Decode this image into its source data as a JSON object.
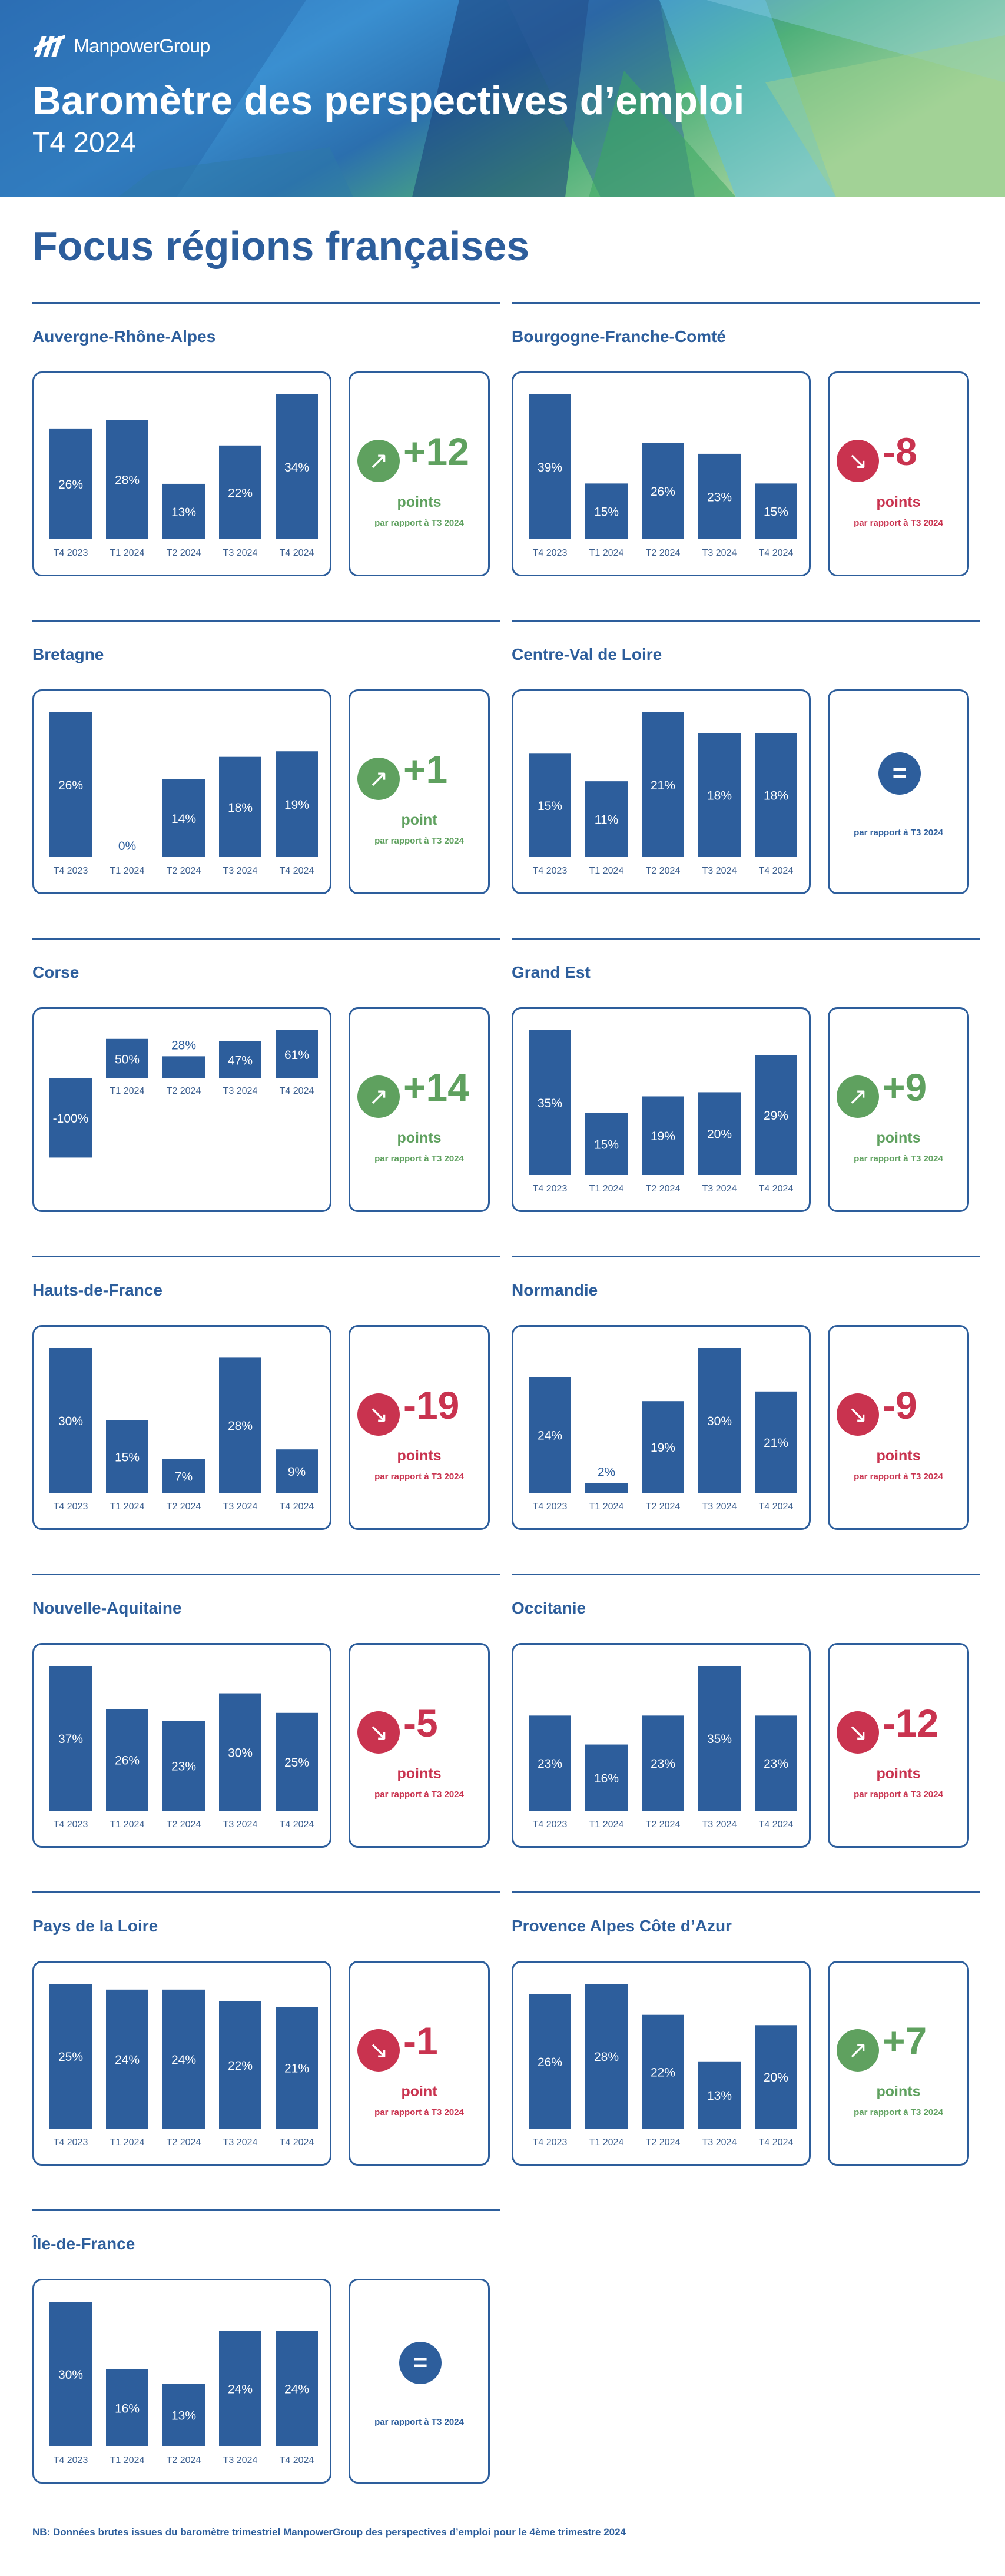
{
  "header": {
    "logo_text": "ManpowerGroup",
    "title": "Baromètre des perspectives d’emploi",
    "subtitle": "T4 2024"
  },
  "page_title": "Focus régions françaises",
  "colors": {
    "bar": "#2d5e9c",
    "up": "#5fa15f",
    "down": "#c9334f",
    "neutral": "#2d5e9c"
  },
  "chart_data": [
    {
      "type": "bar",
      "title": "Auvergne-Rhône-Alpes",
      "categories": [
        "T4 2023",
        "T1 2024",
        "T2 2024",
        "T3 2024",
        "T4 2024"
      ],
      "values": [
        26,
        28,
        13,
        22,
        34
      ],
      "labels": [
        "26%",
        "28%",
        "13%",
        "22%",
        "34%"
      ],
      "delta": {
        "value": "+12",
        "unit": "points",
        "ref": "par rapport à T3 2024",
        "trend": "up"
      }
    },
    {
      "type": "bar",
      "title": "Bourgogne-Franche-Comté",
      "categories": [
        "T4 2023",
        "T1 2024",
        "T2 2024",
        "T3 2024",
        "T4 2024"
      ],
      "values": [
        39,
        15,
        26,
        23,
        15
      ],
      "labels": [
        "39%",
        "15%",
        "26%",
        "23%",
        "15%"
      ],
      "delta": {
        "value": "-8",
        "unit": "points",
        "ref": "par rapport à T3 2024",
        "trend": "down"
      }
    },
    {
      "type": "bar",
      "title": "Bretagne",
      "categories": [
        "T4 2023",
        "T1 2024",
        "T2 2024",
        "T3 2024",
        "T4 2024"
      ],
      "values": [
        26,
        0,
        14,
        18,
        19
      ],
      "labels": [
        "26%",
        "0%",
        "14%",
        "18%",
        "19%"
      ],
      "delta": {
        "value": "+1",
        "unit": "point",
        "ref": "par rapport à T3 2024",
        "trend": "up"
      }
    },
    {
      "type": "bar",
      "title": "Centre-Val de Loire",
      "categories": [
        "T4 2023",
        "T1 2024",
        "T2 2024",
        "T3 2024",
        "T4 2024"
      ],
      "values": [
        15,
        11,
        21,
        18,
        18
      ],
      "labels": [
        "15%",
        "11%",
        "21%",
        "18%",
        "18%"
      ],
      "delta": {
        "value": "=",
        "unit": "",
        "ref": "par rapport à T3 2024",
        "trend": "equal"
      }
    },
    {
      "type": "bar",
      "title": "Corse",
      "categories": [
        "T4 2023",
        "T1 2024",
        "T2 2024",
        "T3 2024",
        "T4 2024"
      ],
      "values": [
        -100,
        50,
        28,
        47,
        61
      ],
      "labels": [
        "-100%",
        "50%",
        "28%",
        "47%",
        "61%"
      ],
      "delta": {
        "value": "+14",
        "unit": "points",
        "ref": "par rapport à T3 2024",
        "trend": "up"
      }
    },
    {
      "type": "bar",
      "title": "Grand Est",
      "categories": [
        "T4 2023",
        "T1 2024",
        "T2 2024",
        "T3 2024",
        "T4 2024"
      ],
      "values": [
        35,
        15,
        19,
        20,
        29
      ],
      "labels": [
        "35%",
        "15%",
        "19%",
        "20%",
        "29%"
      ],
      "delta": {
        "value": "+9",
        "unit": "points",
        "ref": "par rapport à T3 2024",
        "trend": "up"
      }
    },
    {
      "type": "bar",
      "title": "Hauts-de-France",
      "categories": [
        "T4 2023",
        "T1 2024",
        "T2 2024",
        "T3 2024",
        "T4 2024"
      ],
      "values": [
        30,
        15,
        7,
        28,
        9
      ],
      "labels": [
        "30%",
        "15%",
        "7%",
        "28%",
        "9%"
      ],
      "delta": {
        "value": "-19",
        "unit": "points",
        "ref": "par rapport à T3 2024",
        "trend": "down"
      }
    },
    {
      "type": "bar",
      "title": "Normandie",
      "categories": [
        "T4 2023",
        "T1 2024",
        "T2 2024",
        "T3 2024",
        "T4 2024"
      ],
      "values": [
        24,
        2,
        19,
        30,
        21
      ],
      "labels": [
        "24%",
        "2%",
        "19%",
        "30%",
        "21%"
      ],
      "delta": {
        "value": "-9",
        "unit": "points",
        "ref": "par rapport à T3 2024",
        "trend": "down"
      }
    },
    {
      "type": "bar",
      "title": "Nouvelle-Aquitaine",
      "categories": [
        "T4 2023",
        "T1 2024",
        "T2 2024",
        "T3 2024",
        "T4 2024"
      ],
      "values": [
        37,
        26,
        23,
        30,
        25
      ],
      "labels": [
        "37%",
        "26%",
        "23%",
        "30%",
        "25%"
      ],
      "delta": {
        "value": "-5",
        "unit": "points",
        "ref": "par rapport à T3 2024",
        "trend": "down"
      }
    },
    {
      "type": "bar",
      "title": "Occitanie",
      "categories": [
        "T4 2023",
        "T1 2024",
        "T2 2024",
        "T3 2024",
        "T4 2024"
      ],
      "values": [
        23,
        16,
        23,
        35,
        23
      ],
      "labels": [
        "23%",
        "16%",
        "23%",
        "35%",
        "23%"
      ],
      "delta": {
        "value": "-12",
        "unit": "points",
        "ref": "par rapport à T3 2024",
        "trend": "down"
      }
    },
    {
      "type": "bar",
      "title": "Pays de la Loire",
      "categories": [
        "T4 2023",
        "T1 2024",
        "T2 2024",
        "T3 2024",
        "T4 2024"
      ],
      "values": [
        25,
        24,
        24,
        22,
        21
      ],
      "labels": [
        "25%",
        "24%",
        "24%",
        "22%",
        "21%"
      ],
      "delta": {
        "value": "-1",
        "unit": "point",
        "ref": "par rapport à T3 2024",
        "trend": "down"
      }
    },
    {
      "type": "bar",
      "title": "Provence Alpes Côte d’Azur",
      "categories": [
        "T4 2023",
        "T1 2024",
        "T2 2024",
        "T3 2024",
        "T4 2024"
      ],
      "values": [
        26,
        28,
        22,
        13,
        20
      ],
      "labels": [
        "26%",
        "28%",
        "22%",
        "13%",
        "20%"
      ],
      "delta": {
        "value": "+7",
        "unit": "points",
        "ref": "par rapport à T3 2024",
        "trend": "up"
      }
    },
    {
      "type": "bar",
      "title": "Île-de-France",
      "categories": [
        "T4 2023",
        "T1 2024",
        "T2 2024",
        "T3 2024",
        "T4 2024"
      ],
      "values": [
        30,
        16,
        13,
        24,
        24
      ],
      "labels": [
        "30%",
        "16%",
        "13%",
        "24%",
        "24%"
      ],
      "delta": {
        "value": "=",
        "unit": "",
        "ref": "par rapport à T3 2024",
        "trend": "equal"
      }
    }
  ],
  "footnote": "NB: Données brutes issues du baromètre trimestriel ManpowerGroup des perspectives d’emploi pour le 4ème trimestre 2024"
}
